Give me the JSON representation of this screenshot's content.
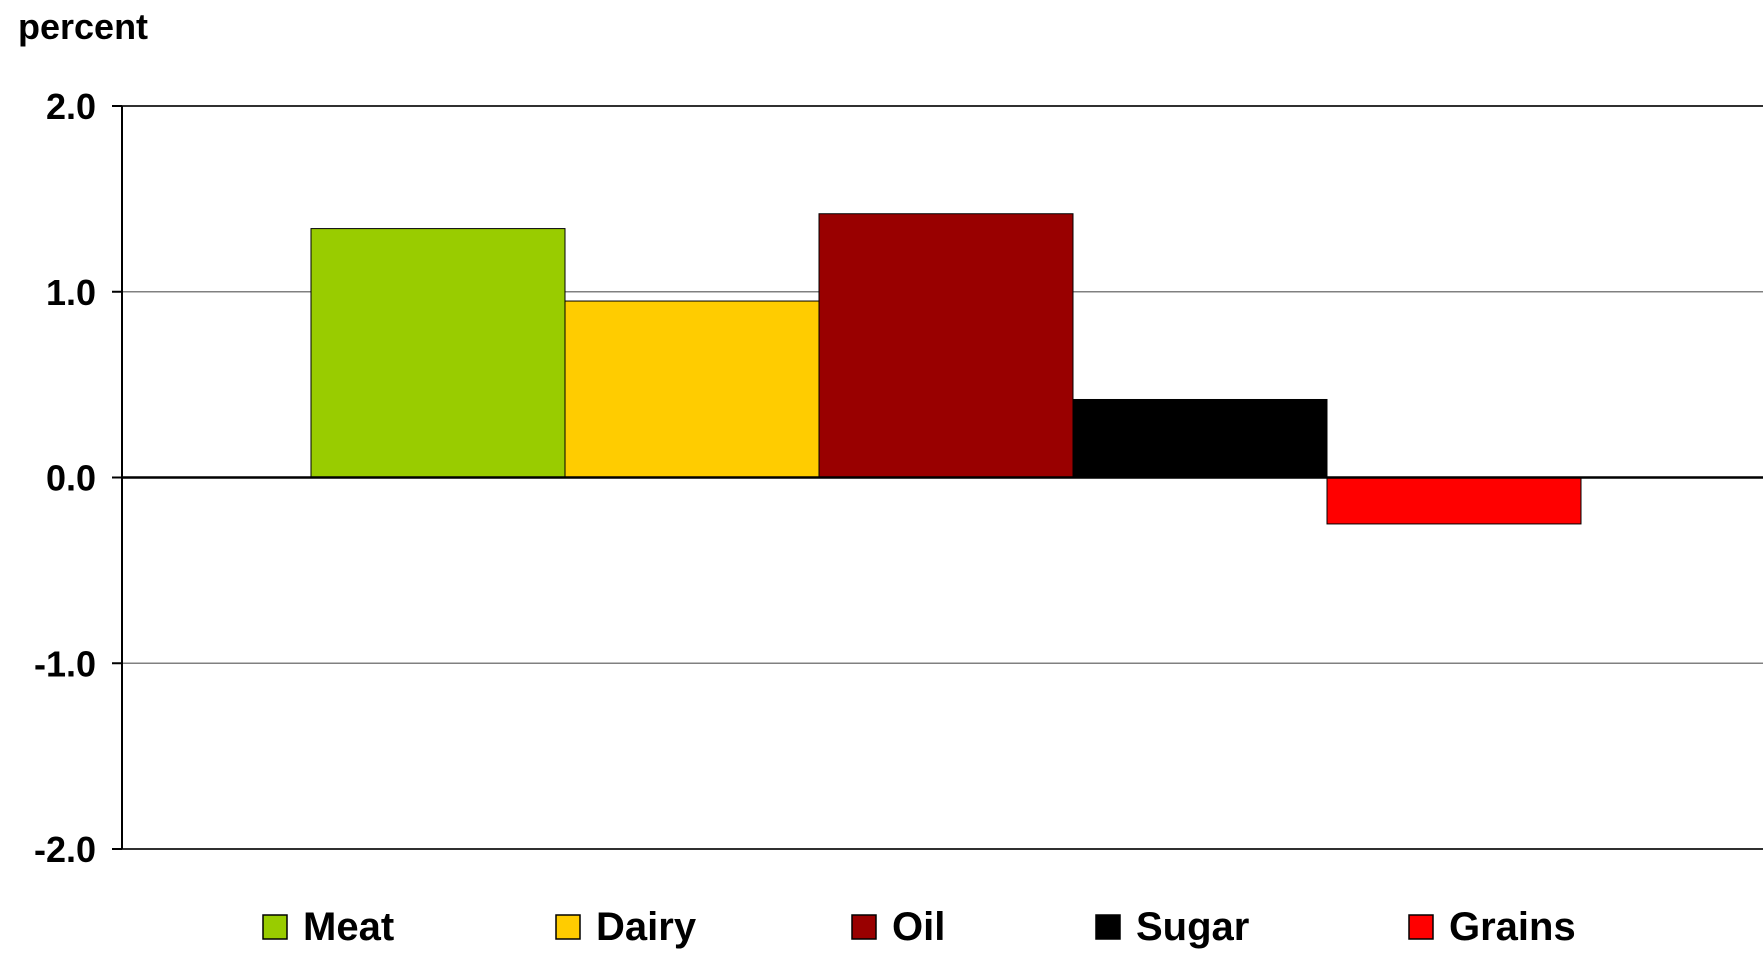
{
  "chart_data": {
    "type": "bar",
    "ylabel": "percent",
    "ylim": [
      -2.0,
      2.0
    ],
    "yticks": [
      2.0,
      1.0,
      0.0,
      -1.0,
      -2.0
    ],
    "ytick_labels": [
      "2.0",
      "1.0",
      "0.0",
      "-1.0",
      "-2.0"
    ],
    "grid": true,
    "legend_position": "bottom",
    "series": [
      {
        "name": "Meat",
        "value": 1.34,
        "color": "#99cc00"
      },
      {
        "name": "Dairy",
        "value": 0.95,
        "color": "#ffcc00"
      },
      {
        "name": "Oil",
        "value": 1.42,
        "color": "#990000"
      },
      {
        "name": "Sugar",
        "value": 0.42,
        "color": "#000000"
      },
      {
        "name": "Grains",
        "value": -0.25,
        "color": "#ff0000"
      }
    ]
  }
}
